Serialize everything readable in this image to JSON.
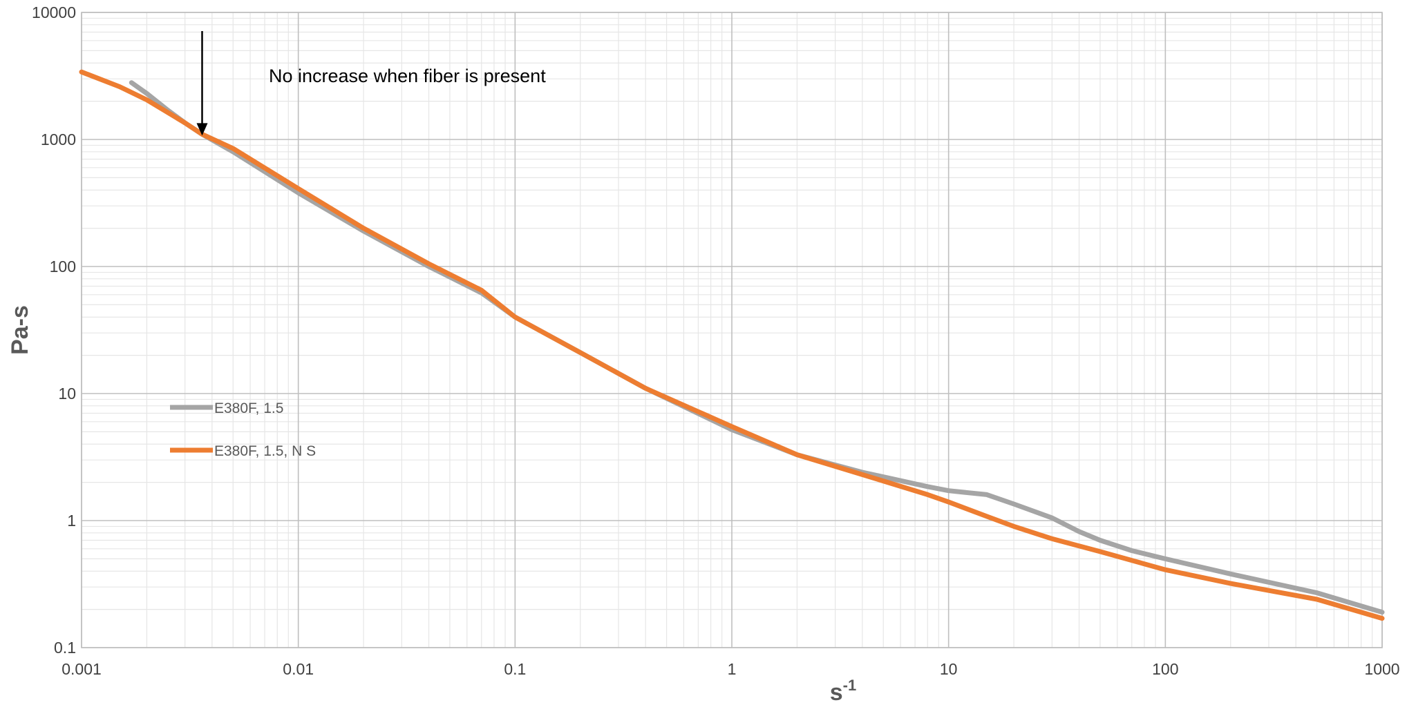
{
  "chart_data": {
    "type": "line",
    "xlabel": "s",
    "xlabel_superscript": "-1",
    "ylabel": "Pa-s",
    "x_scale": "log",
    "y_scale": "log",
    "xlim": [
      0.001,
      1000
    ],
    "ylim": [
      0.1,
      10000
    ],
    "x_ticks": [
      "0.001",
      "0.01",
      "0.1",
      "1",
      "10",
      "100",
      "1000"
    ],
    "y_ticks": [
      "10000",
      "1000",
      "100",
      "10",
      "1",
      "0.1"
    ],
    "grid": true,
    "legend_position": "left",
    "annotation": {
      "text": "No increase when fiber is present",
      "arrow_x": 0.0036,
      "arrow_y": 1100
    },
    "series": [
      {
        "name": "E380F, 1.5",
        "color": "#a5a5a5",
        "x": [
          0.0017,
          0.002,
          0.0025,
          0.003,
          0.0036,
          0.005,
          0.01,
          0.02,
          0.04,
          0.07,
          0.1,
          0.2,
          0.4,
          1,
          2,
          4,
          8,
          10,
          15,
          20,
          30,
          40,
          50,
          70,
          100,
          200,
          500,
          1000
        ],
        "y": [
          2800,
          2300,
          1700,
          1350,
          1100,
          800,
          380,
          190,
          100,
          62,
          40,
          21,
          11,
          5.2,
          3.3,
          2.4,
          1.85,
          1.72,
          1.6,
          1.35,
          1.05,
          0.82,
          0.7,
          0.58,
          0.5,
          0.38,
          0.27,
          0.19
        ]
      },
      {
        "name": "E380F, 1.5, N S",
        "color": "#ed7d31",
        "x": [
          0.001,
          0.0015,
          0.002,
          0.003,
          0.0036,
          0.005,
          0.01,
          0.02,
          0.04,
          0.07,
          0.1,
          0.2,
          0.4,
          1,
          2,
          4,
          8,
          10,
          15,
          20,
          30,
          50,
          100,
          200,
          500,
          1000
        ],
        "y": [
          3400,
          2600,
          2050,
          1350,
          1100,
          850,
          410,
          200,
          105,
          65,
          40,
          21,
          11,
          5.5,
          3.3,
          2.3,
          1.6,
          1.4,
          1.08,
          0.9,
          0.72,
          0.57,
          0.41,
          0.32,
          0.24,
          0.17
        ]
      }
    ]
  }
}
